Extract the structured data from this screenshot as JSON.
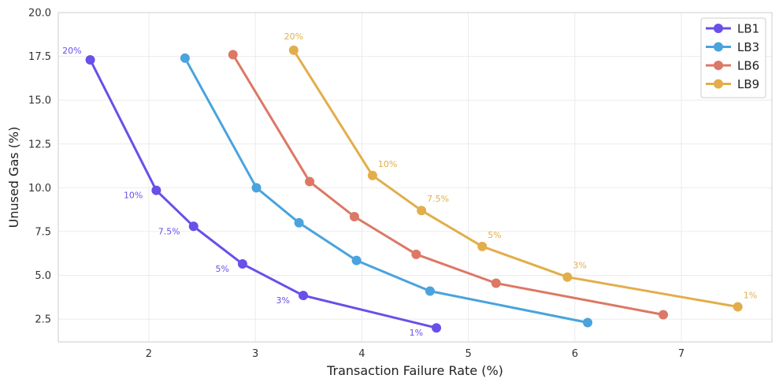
{
  "chart_data": {
    "type": "line",
    "title": "",
    "xlabel": "Transaction Failure Rate (%)",
    "ylabel": "Unused Gas (%)",
    "xlim": [
      1.15,
      7.85
    ],
    "ylim": [
      1.2,
      20.0
    ],
    "x_ticks": [
      2,
      3,
      4,
      5,
      6,
      7
    ],
    "y_ticks": [
      2.5,
      5.0,
      7.5,
      10.0,
      12.5,
      15.0,
      17.5,
      20.0
    ],
    "x_tick_labels": [
      "2",
      "3",
      "4",
      "5",
      "6",
      "7"
    ],
    "y_tick_labels": [
      "2.5",
      "5.0",
      "7.5",
      "10.0",
      "12.5",
      "15.0",
      "17.5",
      "20.0"
    ],
    "grid": true,
    "legend_position": "top-right",
    "series": [
      {
        "name": "LB1",
        "color": "#6a4fe8",
        "x": [
          1.45,
          2.07,
          2.42,
          2.88,
          3.45,
          4.7
        ],
        "y": [
          17.3,
          9.85,
          7.8,
          5.65,
          3.85,
          2.0
        ],
        "labels": [
          "20%",
          "10%",
          "7.5%",
          "5%",
          "3%",
          "1%"
        ],
        "label_placement": "left"
      },
      {
        "name": "LB3",
        "color": "#4aa3dd",
        "x": [
          2.34,
          3.01,
          3.41,
          3.95,
          4.64,
          6.12
        ],
        "y": [
          17.4,
          10.0,
          8.0,
          5.85,
          4.1,
          2.3
        ],
        "labels": [],
        "label_placement": "none"
      },
      {
        "name": "LB6",
        "color": "#dc7865",
        "x": [
          2.79,
          3.51,
          3.93,
          4.51,
          5.26,
          6.83
        ],
        "y": [
          17.6,
          10.35,
          8.35,
          6.2,
          4.55,
          2.75
        ],
        "labels": [],
        "label_placement": "none"
      },
      {
        "name": "LB9",
        "color": "#e2ae4b",
        "x": [
          3.36,
          4.1,
          4.56,
          5.13,
          5.93,
          7.53
        ],
        "y": [
          17.85,
          10.7,
          8.7,
          6.65,
          4.9,
          3.2
        ],
        "labels": [
          "20%",
          "10%",
          "7.5%",
          "5%",
          "3%",
          "1%"
        ],
        "label_placement": "right"
      }
    ]
  }
}
